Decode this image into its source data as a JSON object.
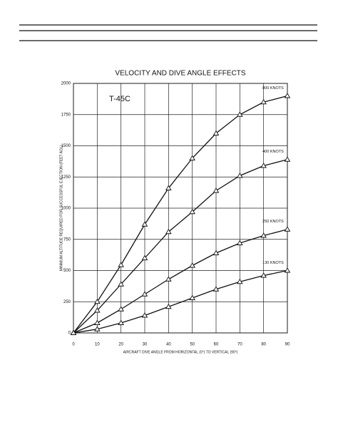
{
  "chart_data": {
    "type": "line",
    "title": "VELOCITY AND DIVE ANGLE EFFECTS",
    "annotation": "T-45C",
    "x_label": "AIRCRAFT DIVE ANGLE FROM HORIZONTAL (0°) TO VERTICAL (90°)",
    "y_label": "MINIMUM ALTITUDE REQUIRED FOR SUCCESSFUL EJECTION (FEET AGL)",
    "x": [
      0,
      10,
      20,
      30,
      40,
      50,
      60,
      70,
      80,
      90
    ],
    "series": [
      {
        "name": "800 KNOTS",
        "color": "#111111",
        "values": [
          0,
          250,
          545,
          870,
          1160,
          1400,
          1600,
          1750,
          1850,
          1900
        ]
      },
      {
        "name": "400 KNOTS",
        "color": "#111111",
        "values": [
          0,
          180,
          390,
          600,
          810,
          970,
          1140,
          1260,
          1340,
          1390
        ]
      },
      {
        "name": "250 KNOTS",
        "color": "#111111",
        "values": [
          0,
          80,
          190,
          310,
          430,
          540,
          640,
          720,
          780,
          830
        ]
      },
      {
        "name": "130 KNOTS",
        "color": "#111111",
        "values": [
          0,
          30,
          80,
          140,
          210,
          280,
          350,
          410,
          460,
          500
        ]
      }
    ],
    "xlim": [
      0,
      90
    ],
    "xticks": [
      0,
      10,
      20,
      30,
      40,
      50,
      60,
      70,
      80,
      90
    ],
    "ylim": [
      0,
      2000
    ],
    "yticks": [
      0,
      250,
      500,
      750,
      1000,
      1250,
      1500,
      1750,
      2000
    ],
    "grid": true
  }
}
